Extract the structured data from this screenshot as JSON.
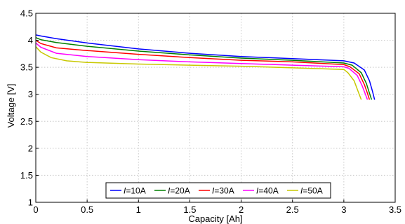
{
  "chart_data": {
    "type": "line",
    "title": "",
    "xlabel": "Capacity [Ah]",
    "ylabel": "Voltage [V]",
    "xlim": [
      0,
      3.5
    ],
    "ylim": [
      1,
      4.5
    ],
    "xticks": [
      0,
      0.5,
      1,
      1.5,
      2,
      2.5,
      3,
      3.5
    ],
    "xtick_labels": [
      "0",
      "0.5",
      "1",
      "1.5",
      "2",
      "2.5",
      "3",
      "3.5"
    ],
    "yticks": [
      1,
      1.5,
      2,
      2.5,
      3,
      3.5,
      4,
      4.5
    ],
    "ytick_labels": [
      "1",
      "1.5",
      "2",
      "2.5",
      "3",
      "3.5",
      "4",
      "4.5"
    ],
    "grid": true,
    "legend_position": "bottom-center",
    "series": [
      {
        "name_prefix": "I",
        "name_suffix": "=10A",
        "color": "#0000ff",
        "x": [
          0,
          0.05,
          0.2,
          0.5,
          1.0,
          1.5,
          2.0,
          2.5,
          3.0,
          3.1,
          3.2,
          3.25,
          3.28,
          3.3
        ],
        "y": [
          4.1,
          4.08,
          4.03,
          3.95,
          3.84,
          3.76,
          3.7,
          3.66,
          3.62,
          3.58,
          3.45,
          3.25,
          3.05,
          2.9
        ]
      },
      {
        "name_prefix": "I",
        "name_suffix": "=20A",
        "color": "#008000",
        "x": [
          0,
          0.05,
          0.2,
          0.5,
          1.0,
          1.5,
          2.0,
          2.5,
          3.0,
          3.08,
          3.17,
          3.22,
          3.25,
          3.27
        ],
        "y": [
          4.05,
          4.01,
          3.96,
          3.89,
          3.8,
          3.73,
          3.67,
          3.63,
          3.58,
          3.54,
          3.4,
          3.2,
          3.02,
          2.9
        ]
      },
      {
        "name_prefix": "I",
        "name_suffix": "=30A",
        "color": "#ff0000",
        "x": [
          0,
          0.05,
          0.2,
          0.5,
          1.0,
          1.5,
          2.0,
          2.5,
          3.0,
          3.06,
          3.15,
          3.2,
          3.23,
          3.25
        ],
        "y": [
          4.0,
          3.94,
          3.86,
          3.81,
          3.74,
          3.68,
          3.63,
          3.6,
          3.55,
          3.51,
          3.38,
          3.18,
          3.02,
          2.9
        ]
      },
      {
        "name_prefix": "I",
        "name_suffix": "=40A",
        "color": "#ff00ff",
        "x": [
          0,
          0.05,
          0.2,
          0.5,
          1.0,
          1.5,
          2.0,
          2.5,
          3.0,
          3.05,
          3.13,
          3.18,
          3.21,
          3.23
        ],
        "y": [
          3.95,
          3.87,
          3.76,
          3.7,
          3.64,
          3.6,
          3.57,
          3.54,
          3.51,
          3.48,
          3.35,
          3.15,
          3.0,
          2.9
        ]
      },
      {
        "name_prefix": "I",
        "name_suffix": "=50A",
        "color": "#c8c800",
        "x": [
          0,
          0.05,
          0.15,
          0.3,
          0.5,
          1.0,
          1.5,
          2.0,
          2.5,
          3.0,
          3.04,
          3.1,
          3.14,
          3.17
        ],
        "y": [
          3.88,
          3.78,
          3.68,
          3.62,
          3.59,
          3.56,
          3.54,
          3.52,
          3.49,
          3.46,
          3.4,
          3.25,
          3.05,
          2.9
        ]
      }
    ]
  }
}
